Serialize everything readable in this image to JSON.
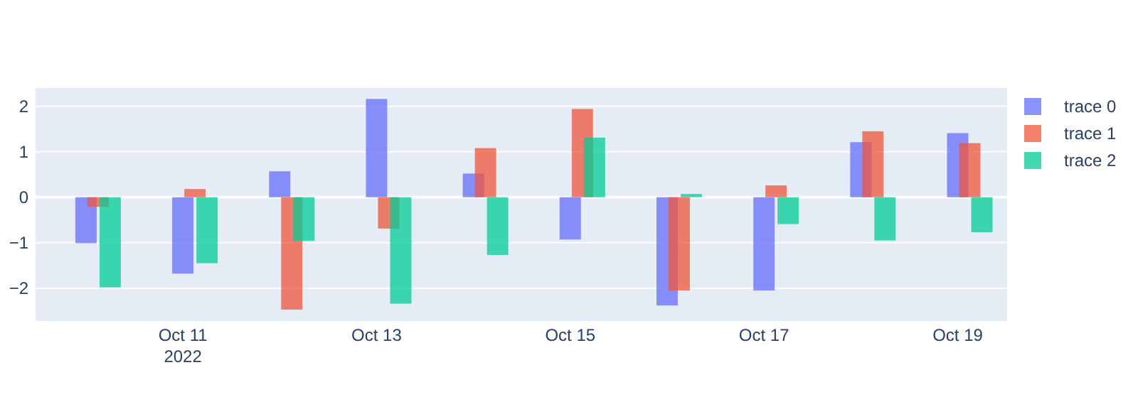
{
  "chart_data": {
    "type": "bar",
    "legend": "top right",
    "grid": "y",
    "xlim": [
      "2022-10-09T11:30",
      "2022-10-19T12:15"
    ],
    "xticks": [
      {
        "value": "2022-10-11",
        "label": "Oct 11\n2022"
      },
      {
        "value": "2022-10-13",
        "label": "Oct 13"
      },
      {
        "value": "2022-10-15",
        "label": "Oct 15"
      },
      {
        "value": "2022-10-17",
        "label": "Oct 17"
      },
      {
        "value": "2022-10-19",
        "label": "Oct 19"
      }
    ],
    "ylim": [
      -2.72,
      2.4
    ],
    "yticks": [
      {
        "value": -2,
        "label": "−2"
      },
      {
        "value": -1,
        "label": "−1"
      },
      0,
      1,
      2
    ],
    "series": [
      {
        "name": "trace 0",
        "color": "#636efa",
        "x": [
          "2022-10-10",
          "2022-10-11",
          "2022-10-12",
          "2022-10-13",
          "2022-10-14",
          "2022-10-15",
          "2022-10-16",
          "2022-10-17",
          "2022-10-18",
          "2022-10-19"
        ],
        "values": [
          -1.01,
          -1.68,
          0.57,
          2.16,
          0.52,
          -0.93,
          -2.38,
          -2.05,
          1.21,
          1.41
        ]
      },
      {
        "name": "trace 1",
        "color": "#ef553b",
        "x": [
          "2022-10-10T03:00",
          "2022-10-11T03:00",
          "2022-10-12T03:00",
          "2022-10-13T03:00",
          "2022-10-14T03:00",
          "2022-10-15T03:00",
          "2022-10-16T03:00",
          "2022-10-17T03:00",
          "2022-10-18T03:00",
          "2022-10-19T03:00"
        ],
        "values": [
          -0.21,
          0.18,
          -2.47,
          -0.69,
          1.08,
          1.94,
          -2.05,
          0.26,
          1.45,
          1.19
        ]
      },
      {
        "name": "trace 2",
        "color": "#00cc96",
        "x": [
          "2022-10-10T06:00",
          "2022-10-11T06:00",
          "2022-10-12T06:00",
          "2022-10-13T06:00",
          "2022-10-14T06:00",
          "2022-10-15T06:00",
          "2022-10-16T06:00",
          "2022-10-17T06:00",
          "2022-10-18T06:00",
          "2022-10-19T06:00"
        ],
        "values": [
          -1.98,
          -1.45,
          -0.96,
          -2.34,
          -1.27,
          1.31,
          0.07,
          -0.59,
          -0.95,
          -0.77
        ]
      }
    ]
  }
}
